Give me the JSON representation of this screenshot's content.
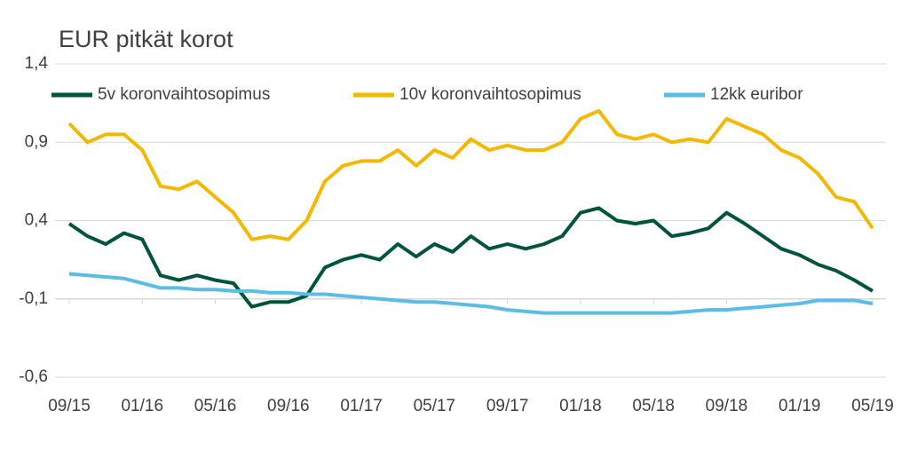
{
  "chart_data": {
    "type": "line",
    "title": "EUR pitkät korot",
    "categories": [
      "09/15",
      null,
      null,
      null,
      "01/16",
      null,
      null,
      null,
      "05/16",
      null,
      null,
      null,
      "09/16",
      null,
      null,
      null,
      "01/17",
      null,
      null,
      null,
      "05/17",
      null,
      null,
      null,
      "09/17",
      null,
      null,
      null,
      "01/18",
      null,
      null,
      null,
      "05/18",
      null,
      null,
      null,
      "09/18",
      null,
      null,
      null,
      "01/19",
      null,
      null,
      null,
      "05/19"
    ],
    "series": [
      {
        "name": "5v koronvaihtosopimus",
        "color": "#00543c",
        "values": [
          0.38,
          0.3,
          0.25,
          0.32,
          0.28,
          0.05,
          0.02,
          0.05,
          0.02,
          0.0,
          -0.15,
          -0.12,
          -0.12,
          -0.08,
          0.1,
          0.15,
          0.18,
          0.15,
          0.25,
          0.17,
          0.25,
          0.2,
          0.3,
          0.22,
          0.25,
          0.22,
          0.25,
          0.3,
          0.45,
          0.48,
          0.4,
          0.38,
          0.4,
          0.3,
          0.32,
          0.35,
          0.45,
          0.38,
          0.3,
          0.22,
          0.18,
          0.12,
          0.08,
          0.02,
          -0.05
        ]
      },
      {
        "name": "10v koronvaihtosopimus",
        "color": "#f5b800",
        "values": [
          1.02,
          0.9,
          0.95,
          0.95,
          0.85,
          0.62,
          0.6,
          0.65,
          0.55,
          0.45,
          0.28,
          0.3,
          0.28,
          0.4,
          0.65,
          0.75,
          0.78,
          0.78,
          0.85,
          0.75,
          0.85,
          0.8,
          0.92,
          0.85,
          0.88,
          0.85,
          0.85,
          0.9,
          1.05,
          1.1,
          0.95,
          0.92,
          0.95,
          0.9,
          0.92,
          0.9,
          1.05,
          1.0,
          0.95,
          0.85,
          0.8,
          0.7,
          0.55,
          0.52,
          0.35
        ]
      },
      {
        "name": "12kk euribor",
        "color": "#5bbde6",
        "values": [
          0.06,
          0.05,
          0.04,
          0.03,
          0.0,
          -0.03,
          -0.03,
          -0.04,
          -0.04,
          -0.05,
          -0.05,
          -0.06,
          -0.06,
          -0.07,
          -0.07,
          -0.08,
          -0.09,
          -0.1,
          -0.11,
          -0.12,
          -0.12,
          -0.13,
          -0.14,
          -0.15,
          -0.17,
          -0.18,
          -0.19,
          -0.19,
          -0.19,
          -0.19,
          -0.19,
          -0.19,
          -0.19,
          -0.19,
          -0.18,
          -0.17,
          -0.17,
          -0.16,
          -0.15,
          -0.14,
          -0.13,
          -0.11,
          -0.11,
          -0.11,
          -0.13
        ]
      }
    ],
    "ylim": [
      -0.6,
      1.4
    ],
    "yticks": [
      {
        "value": -0.6,
        "label": "-0,6"
      },
      {
        "value": -0.1,
        "label": "-0,1"
      },
      {
        "value": 0.4,
        "label": "0,4"
      },
      {
        "value": 0.9,
        "label": "0,9"
      },
      {
        "value": 1.4,
        "label": "1,4"
      }
    ],
    "grid": true
  }
}
